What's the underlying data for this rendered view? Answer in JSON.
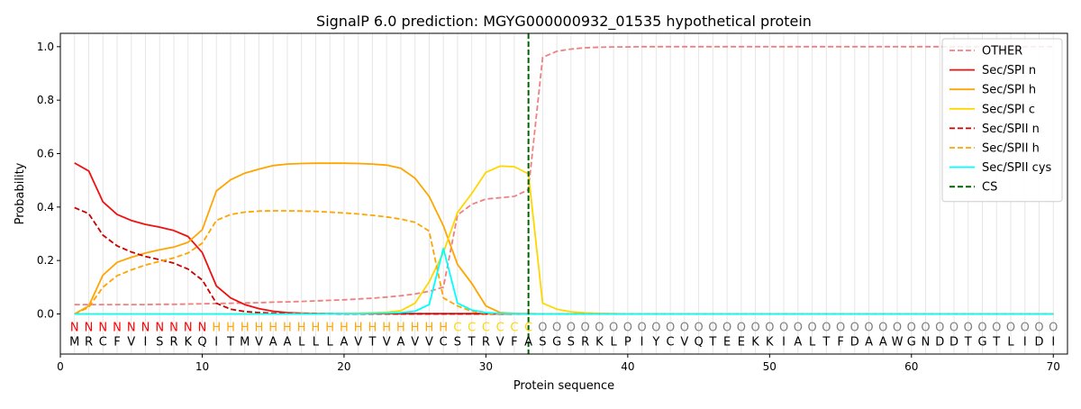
{
  "chart_data": {
    "type": "line",
    "title": "SignalP 6.0 prediction: MGYG000000932_01535 hypothetical protein",
    "xlabel": "Protein sequence",
    "ylabel": "Probability",
    "xlim": [
      0,
      71
    ],
    "ylim": [
      -0.15,
      1.05
    ],
    "x_ticks": [
      0,
      10,
      20,
      30,
      40,
      50,
      60,
      70
    ],
    "y_ticks": [
      0.0,
      0.2,
      0.4,
      0.6,
      0.8,
      1.0
    ],
    "x_tick_labels": [
      "0",
      "10",
      "20",
      "30",
      "40",
      "50",
      "60",
      "70"
    ],
    "y_tick_labels": [
      "0.0",
      "0.2",
      "0.4",
      "0.6",
      "0.8",
      "1.0"
    ],
    "grid": "vertical lines at every residue position",
    "legend_position": "top-right",
    "sequence": "MRCFVISRKQITMVAALLLAVTVAVVCSTRVFASGSRKLPIYCVQTEEKKIALTFDAAWGNDDTGTLIDI",
    "region_labels": "NNNNNNNNNNHHHHHHHHHHHHHHHHHCCCCCCOOOOOOOOOOOOOOOOOOOOOOOOOOOOOOOOOOOOO",
    "region_colors": {
      "N": "#ff0000",
      "H": "#ffa500",
      "C": "#ffd700",
      "O": "#808080"
    },
    "cleavage_site": 33,
    "series": [
      {
        "name": "OTHER",
        "color": "#f08080",
        "dash": "dashed",
        "values": [
          0.035,
          0.035,
          0.035,
          0.035,
          0.035,
          0.035,
          0.036,
          0.036,
          0.037,
          0.038,
          0.039,
          0.04,
          0.041,
          0.042,
          0.044,
          0.045,
          0.047,
          0.049,
          0.051,
          0.053,
          0.056,
          0.059,
          0.063,
          0.068,
          0.075,
          0.085,
          0.1,
          0.37,
          0.41,
          0.43,
          0.435,
          0.44,
          0.465,
          0.96,
          0.983,
          0.991,
          0.996,
          0.998,
          0.999,
          0.999,
          1.0,
          1.0,
          1.0,
          1.0,
          1.0,
          1.0,
          1.0,
          1.0,
          1.0,
          1.0,
          1.0,
          1.0,
          1.0,
          1.0,
          1.0,
          1.0,
          1.0,
          1.0,
          1.0,
          1.0,
          1.0,
          1.0,
          1.0,
          1.0,
          1.0,
          1.0,
          1.0,
          1.0,
          1.0,
          1.0
        ]
      },
      {
        "name": "Sec/SPI n",
        "color": "#ee1111",
        "dash": "solid",
        "values": [
          0.565,
          0.535,
          0.42,
          0.372,
          0.35,
          0.335,
          0.325,
          0.312,
          0.29,
          0.23,
          0.105,
          0.06,
          0.035,
          0.02,
          0.01,
          0.005,
          0.003,
          0.002,
          0.001,
          0.001,
          0.001,
          0.001,
          0.001,
          0.001,
          0.001,
          0.001,
          0.001,
          0.001,
          0.001,
          0.001,
          0.0,
          0.0,
          0.0,
          0.0,
          0.0,
          0.0,
          0.0,
          0.0,
          0.0,
          0.0,
          0.0,
          0.0,
          0.0,
          0.0,
          0.0,
          0.0,
          0.0,
          0.0,
          0.0,
          0.0,
          0.0,
          0.0,
          0.0,
          0.0,
          0.0,
          0.0,
          0.0,
          0.0,
          0.0,
          0.0,
          0.0,
          0.0,
          0.0,
          0.0,
          0.0,
          0.0,
          0.0,
          0.0,
          0.0,
          0.0
        ]
      },
      {
        "name": "Sec/SPI h",
        "color": "#ffa500",
        "dash": "solid",
        "values": [
          0.0,
          0.03,
          0.145,
          0.193,
          0.212,
          0.228,
          0.24,
          0.25,
          0.268,
          0.315,
          0.46,
          0.502,
          0.527,
          0.542,
          0.555,
          0.561,
          0.563,
          0.564,
          0.564,
          0.564,
          0.563,
          0.561,
          0.557,
          0.545,
          0.508,
          0.44,
          0.33,
          0.185,
          0.115,
          0.03,
          0.005,
          0.002,
          0.001,
          0.0,
          0.0,
          0.0,
          0.0,
          0.0,
          0.0,
          0.0,
          0.0,
          0.0,
          0.0,
          0.0,
          0.0,
          0.0,
          0.0,
          0.0,
          0.0,
          0.0,
          0.0,
          0.0,
          0.0,
          0.0,
          0.0,
          0.0,
          0.0,
          0.0,
          0.0,
          0.0,
          0.0,
          0.0,
          0.0,
          0.0,
          0.0,
          0.0,
          0.0,
          0.0,
          0.0,
          0.0
        ]
      },
      {
        "name": "Sec/SPI c",
        "color": "#ffd700",
        "dash": "solid",
        "values": [
          0.0,
          0.0,
          0.0,
          0.0,
          0.0,
          0.0,
          0.0,
          0.0,
          0.0,
          0.0,
          0.0,
          0.0,
          0.0,
          0.0,
          0.0,
          0.001,
          0.001,
          0.001,
          0.002,
          0.002,
          0.003,
          0.004,
          0.006,
          0.012,
          0.04,
          0.12,
          0.23,
          0.38,
          0.45,
          0.53,
          0.553,
          0.551,
          0.524,
          0.04,
          0.018,
          0.008,
          0.004,
          0.002,
          0.001,
          0.0,
          0.0,
          0.0,
          0.0,
          0.0,
          0.0,
          0.0,
          0.0,
          0.0,
          0.0,
          0.0,
          0.0,
          0.0,
          0.0,
          0.0,
          0.0,
          0.0,
          0.0,
          0.0,
          0.0,
          0.0,
          0.0,
          0.0,
          0.0,
          0.0,
          0.0,
          0.0,
          0.0,
          0.0,
          0.0,
          0.0
        ]
      },
      {
        "name": "Sec/SPII n",
        "color": "#cc0000",
        "dash": "dashed",
        "values": [
          0.398,
          0.375,
          0.295,
          0.255,
          0.232,
          0.215,
          0.203,
          0.19,
          0.168,
          0.127,
          0.04,
          0.018,
          0.009,
          0.005,
          0.003,
          0.002,
          0.001,
          0.001,
          0.001,
          0.0,
          0.0,
          0.0,
          0.0,
          0.0,
          0.0,
          0.0,
          0.0,
          0.0,
          0.0,
          0.0,
          0.0,
          0.0,
          0.0,
          0.0,
          0.0,
          0.0,
          0.0,
          0.0,
          0.0,
          0.0,
          0.0,
          0.0,
          0.0,
          0.0,
          0.0,
          0.0,
          0.0,
          0.0,
          0.0,
          0.0,
          0.0,
          0.0,
          0.0,
          0.0,
          0.0,
          0.0,
          0.0,
          0.0,
          0.0,
          0.0,
          0.0,
          0.0,
          0.0,
          0.0,
          0.0,
          0.0,
          0.0,
          0.0,
          0.0,
          0.0
        ]
      },
      {
        "name": "Sec/SPII h",
        "color": "#ffa500",
        "dash": "dashed",
        "values": [
          0.0,
          0.025,
          0.1,
          0.143,
          0.165,
          0.183,
          0.197,
          0.21,
          0.228,
          0.265,
          0.35,
          0.372,
          0.381,
          0.385,
          0.386,
          0.386,
          0.385,
          0.384,
          0.381,
          0.378,
          0.374,
          0.369,
          0.363,
          0.355,
          0.343,
          0.31,
          0.06,
          0.03,
          0.01,
          0.002,
          0.001,
          0.0,
          0.0,
          0.0,
          0.0,
          0.0,
          0.0,
          0.0,
          0.0,
          0.0,
          0.0,
          0.0,
          0.0,
          0.0,
          0.0,
          0.0,
          0.0,
          0.0,
          0.0,
          0.0,
          0.0,
          0.0,
          0.0,
          0.0,
          0.0,
          0.0,
          0.0,
          0.0,
          0.0,
          0.0,
          0.0,
          0.0,
          0.0,
          0.0,
          0.0,
          0.0,
          0.0,
          0.0,
          0.0,
          0.0
        ]
      },
      {
        "name": "Sec/SPII cys",
        "color": "#00ffff",
        "dash": "solid",
        "values": [
          0.0,
          0.0,
          0.0,
          0.0,
          0.0,
          0.0,
          0.0,
          0.0,
          0.0,
          0.0,
          0.0,
          0.0,
          0.0,
          0.0,
          0.0,
          0.0,
          0.0,
          0.0,
          0.001,
          0.001,
          0.001,
          0.002,
          0.003,
          0.005,
          0.01,
          0.035,
          0.245,
          0.04,
          0.015,
          0.005,
          0.002,
          0.001,
          0.0,
          0.0,
          0.0,
          0.0,
          0.0,
          0.0,
          0.0,
          0.0,
          0.0,
          0.0,
          0.0,
          0.0,
          0.0,
          0.0,
          0.0,
          0.0,
          0.0,
          0.0,
          0.0,
          0.0,
          0.0,
          0.0,
          0.0,
          0.0,
          0.0,
          0.0,
          0.0,
          0.0,
          0.0,
          0.0,
          0.0,
          0.0,
          0.0,
          0.0,
          0.0,
          0.0,
          0.0,
          0.0
        ]
      },
      {
        "name": "CS",
        "color": "#006400",
        "dash": "dashed",
        "vertical_at": 33
      }
    ]
  }
}
